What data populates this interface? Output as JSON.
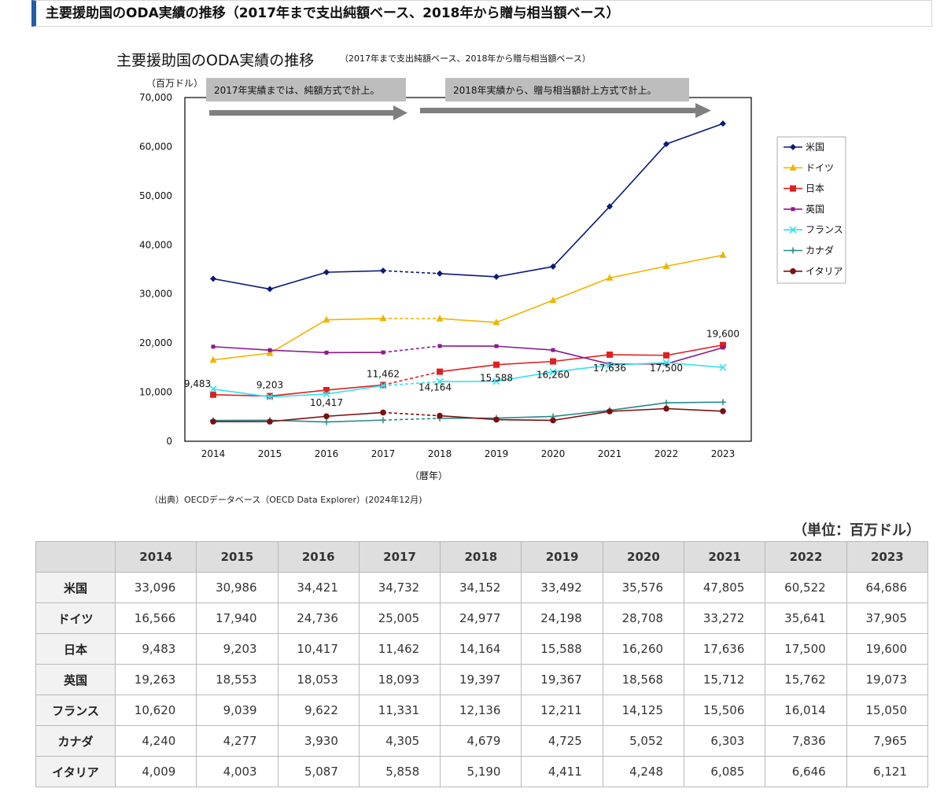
{
  "page_header": "主要援助国のODA実績の推移（2017年まで支出純額ベース、2018年から贈与相当額ベース）",
  "chart_data": {
    "type": "line",
    "title": "主要援助国のODA実績の推移",
    "subtitle": "（2017年まで支出純額ベース、2018年から贈与相当額ベース）",
    "ylabel": "（百万ドル）",
    "xlabel": "（暦年）",
    "ylim": [
      0,
      70000
    ],
    "yticks": [
      "0",
      "10,000",
      "20,000",
      "30,000",
      "40,000",
      "50,000",
      "60,000",
      "70,000"
    ],
    "categories": [
      "2014",
      "2015",
      "2016",
      "2017",
      "2018",
      "2019",
      "2020",
      "2021",
      "2022",
      "2023"
    ],
    "annotations": [
      "2017年実績までは、純額方式で計上。",
      "2018年実績から、贈与相当額計上方式で計上。"
    ],
    "legend_position": "right",
    "series": [
      {
        "name": "米国",
        "color": "#0a1a7a",
        "marker": "diamond",
        "values": [
          33096,
          30986,
          34421,
          34732,
          34152,
          33492,
          35576,
          47805,
          60522,
          64686
        ]
      },
      {
        "name": "ドイツ",
        "color": "#f0b400",
        "marker": "triangle",
        "values": [
          16566,
          17940,
          24736,
          25005,
          24977,
          24198,
          28708,
          33272,
          35641,
          37905
        ]
      },
      {
        "name": "日本",
        "color": "#e02020",
        "marker": "square",
        "values": [
          9483,
          9203,
          10417,
          11462,
          14164,
          15588,
          16260,
          17636,
          17500,
          19600
        ]
      },
      {
        "name": "英国",
        "color": "#8b1a8b",
        "marker": "smallsquare",
        "values": [
          19263,
          18553,
          18053,
          18093,
          19397,
          19367,
          18568,
          15712,
          15762,
          19073
        ]
      },
      {
        "name": "フランス",
        "color": "#33e0f0",
        "marker": "x",
        "values": [
          10620,
          9039,
          9622,
          11331,
          12136,
          12211,
          14125,
          15506,
          16014,
          15050
        ]
      },
      {
        "name": "カナダ",
        "color": "#2a8a8a",
        "marker": "plus",
        "values": [
          4240,
          4277,
          3930,
          4305,
          4679,
          4725,
          5052,
          6303,
          7836,
          7965
        ]
      },
      {
        "name": "イタリア",
        "color": "#7a1010",
        "marker": "circle",
        "values": [
          4009,
          4003,
          5087,
          5858,
          5190,
          4411,
          4248,
          6085,
          6646,
          6121
        ]
      }
    ],
    "data_labels": [
      "9,483",
      "9,203",
      "10,417",
      "11,462",
      "14,164",
      "15,588",
      "16,260",
      "17,636",
      "17,500",
      "19,600"
    ]
  },
  "source": "（出典）OECDデータベース（OECD Data Explorer）(2024年12月)",
  "unit": "（単位：百万ドル）",
  "table": {
    "headers": [
      "",
      "2014",
      "2015",
      "2016",
      "2017",
      "2018",
      "2019",
      "2020",
      "2021",
      "2022",
      "2023"
    ],
    "rows": [
      {
        "country": "米国",
        "values": [
          "33,096",
          "30,986",
          "34,421",
          "34,732",
          "34,152",
          "33,492",
          "35,576",
          "47,805",
          "60,522",
          "64,686"
        ]
      },
      {
        "country": "ドイツ",
        "values": [
          "16,566",
          "17,940",
          "24,736",
          "25,005",
          "24,977",
          "24,198",
          "28,708",
          "33,272",
          "35,641",
          "37,905"
        ]
      },
      {
        "country": "日本",
        "values": [
          "9,483",
          "9,203",
          "10,417",
          "11,462",
          "14,164",
          "15,588",
          "16,260",
          "17,636",
          "17,500",
          "19,600"
        ]
      },
      {
        "country": "英国",
        "values": [
          "19,263",
          "18,553",
          "18,053",
          "18,093",
          "19,397",
          "19,367",
          "18,568",
          "15,712",
          "15,762",
          "19,073"
        ]
      },
      {
        "country": "フランス",
        "values": [
          "10,620",
          "9,039",
          "9,622",
          "11,331",
          "12,136",
          "12,211",
          "14,125",
          "15,506",
          "16,014",
          "15,050"
        ]
      },
      {
        "country": "カナダ",
        "values": [
          "4,240",
          "4,277",
          "3,930",
          "4,305",
          "4,679",
          "4,725",
          "5,052",
          "6,303",
          "7,836",
          "7,965"
        ]
      },
      {
        "country": "イタリア",
        "values": [
          "4,009",
          "4,003",
          "5,087",
          "5,858",
          "5,190",
          "4,411",
          "4,248",
          "6,085",
          "6,646",
          "6,121"
        ]
      }
    ]
  }
}
